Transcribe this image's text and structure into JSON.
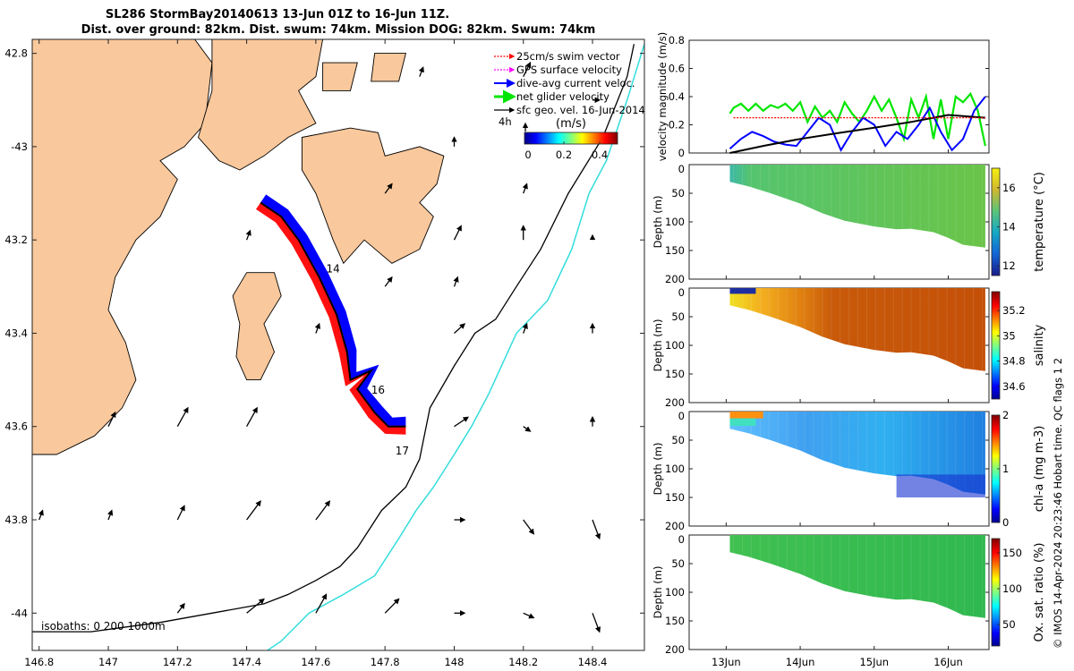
{
  "title": {
    "line1": "SL286 StormBay20140613 13-Jun 01Z to 16-Jun 11Z.",
    "line2": "Dist. over ground: 82km. Dist. swum: 74km. Mission DOG: 82km. Swum: 74km"
  },
  "credit": "© IMOS 14-Apr-2024 20:23:46 Hobart time. QC flags 1  2",
  "colors": {
    "land": "#f9c89c",
    "swim_vector": "#ff0000",
    "gps_velocity": "#ff00ff",
    "dive_avg": "#0000ff",
    "net_glider": "#00e600",
    "sfc_geo": "#000000",
    "isobath_1000": "#33dddd"
  },
  "map": {
    "legend": [
      {
        "label": "25cm/s swim vector",
        "icon": "red-dotted-arrow-icon"
      },
      {
        "label": "GPS surface velocity",
        "icon": "magenta-arrow-icon"
      },
      {
        "label": "dive-avg current veloc.",
        "icon": "blue-arrow-icon"
      },
      {
        "label": "net glider velocity",
        "icon": "green-arrow-icon"
      },
      {
        "label": "sfc geo. vel. 16-Jun-2014",
        "icon": "black-arrow-icon"
      }
    ],
    "legend_4h": "4h",
    "colorbar_label": "(m/s)",
    "colorbar_ticks": [
      {
        "v": 0,
        "t": "0"
      },
      {
        "v": 0.2,
        "t": "0.2"
      },
      {
        "v": 0.4,
        "t": "0.4"
      }
    ],
    "colorbar_range": [
      -0.02,
      0.5
    ],
    "isobath_label": "isobaths: 0   200  1000m",
    "xlim": [
      146.78,
      148.55
    ],
    "ylim": [
      -44.08,
      -42.77
    ],
    "xticks": [
      {
        "v": 146.8,
        "t": "146.8"
      },
      {
        "v": 147,
        "t": "147"
      },
      {
        "v": 147.2,
        "t": "147.2"
      },
      {
        "v": 147.4,
        "t": "147.4"
      },
      {
        "v": 147.6,
        "t": "147.6"
      },
      {
        "v": 147.8,
        "t": "147.8"
      },
      {
        "v": 148,
        "t": "148"
      },
      {
        "v": 148.2,
        "t": "148.2"
      },
      {
        "v": 148.4,
        "t": "148.4"
      }
    ],
    "yticks": [
      {
        "v": -42.8,
        "t": "42.8"
      },
      {
        "v": -43,
        "t": "-43"
      },
      {
        "v": -43.2,
        "t": "43.2"
      },
      {
        "v": -43.4,
        "t": "43.4"
      },
      {
        "v": -43.6,
        "t": "43.6"
      },
      {
        "v": -43.8,
        "t": "43.8"
      },
      {
        "v": -44,
        "t": "-44"
      }
    ],
    "day_labels": [
      {
        "text": "14",
        "lon": 147.63,
        "lat": -43.27
      },
      {
        "text": "16",
        "lon": 147.76,
        "lat": -43.53
      },
      {
        "text": "17",
        "lon": 147.83,
        "lat": -43.66
      }
    ],
    "track": [
      [
        147.44,
        -43.12
      ],
      [
        147.5,
        -43.15
      ],
      [
        147.55,
        -43.2
      ],
      [
        147.61,
        -43.28
      ],
      [
        147.66,
        -43.36
      ],
      [
        147.69,
        -43.44
      ],
      [
        147.7,
        -43.5
      ],
      [
        147.76,
        -43.48
      ],
      [
        147.72,
        -43.52
      ],
      [
        147.77,
        -43.57
      ],
      [
        147.81,
        -43.6
      ],
      [
        147.86,
        -43.6
      ]
    ],
    "isobath_200": [
      [
        148.52,
        -42.78
      ],
      [
        148.5,
        -42.85
      ],
      [
        148.43,
        -42.98
      ],
      [
        148.33,
        -43.1
      ],
      [
        148.25,
        -43.22
      ],
      [
        148.18,
        -43.3
      ],
      [
        148.12,
        -43.37
      ],
      [
        148.06,
        -43.4
      ],
      [
        148.0,
        -43.47
      ],
      [
        147.93,
        -43.56
      ],
      [
        147.9,
        -43.67
      ],
      [
        147.86,
        -43.73
      ],
      [
        147.79,
        -43.78
      ],
      [
        147.72,
        -43.86
      ],
      [
        147.67,
        -43.9
      ],
      [
        147.6,
        -43.93
      ],
      [
        147.52,
        -43.96
      ],
      [
        147.45,
        -43.98
      ],
      [
        147.3,
        -44.0
      ],
      [
        147.15,
        -44.02
      ],
      [
        146.95,
        -44.04
      ],
      [
        146.78,
        -44.04
      ]
    ],
    "isobath_1000": [
      [
        148.55,
        -42.78
      ],
      [
        148.5,
        -42.9
      ],
      [
        148.44,
        -43.03
      ],
      [
        148.39,
        -43.1
      ],
      [
        148.34,
        -43.22
      ],
      [
        148.27,
        -43.33
      ],
      [
        148.18,
        -43.4
      ],
      [
        148.1,
        -43.53
      ],
      [
        148.05,
        -43.6
      ],
      [
        148.0,
        -43.66
      ],
      [
        147.94,
        -43.73
      ],
      [
        147.89,
        -43.78
      ],
      [
        147.84,
        -43.84
      ],
      [
        147.77,
        -43.92
      ],
      [
        147.68,
        -43.96
      ],
      [
        147.58,
        -44.0
      ],
      [
        147.5,
        -44.06
      ],
      [
        147.46,
        -44.08
      ]
    ],
    "land": [
      [
        [
          146.78,
          -42.77
        ],
        [
          147.25,
          -42.77
        ],
        [
          147.3,
          -42.82
        ],
        [
          147.28,
          -42.95
        ],
        [
          147.22,
          -43.0
        ],
        [
          147.15,
          -43.03
        ],
        [
          147.2,
          -43.07
        ],
        [
          147.15,
          -43.15
        ],
        [
          147.08,
          -43.2
        ],
        [
          147.02,
          -43.28
        ],
        [
          147.0,
          -43.35
        ],
        [
          147.05,
          -43.42
        ],
        [
          147.08,
          -43.5
        ],
        [
          147.04,
          -43.56
        ],
        [
          146.96,
          -43.62
        ],
        [
          146.85,
          -43.66
        ],
        [
          146.78,
          -43.66
        ]
      ],
      [
        [
          147.3,
          -42.77
        ],
        [
          147.62,
          -42.77
        ],
        [
          147.6,
          -42.85
        ],
        [
          147.55,
          -42.88
        ],
        [
          147.6,
          -42.95
        ],
        [
          147.52,
          -42.98
        ],
        [
          147.45,
          -43.02
        ],
        [
          147.38,
          -43.05
        ],
        [
          147.32,
          -43.03
        ],
        [
          147.26,
          -42.98
        ],
        [
          147.3,
          -42.88
        ]
      ],
      [
        [
          147.62,
          -42.82
        ],
        [
          147.72,
          -42.82
        ],
        [
          147.7,
          -42.88
        ],
        [
          147.62,
          -42.88
        ]
      ],
      [
        [
          147.77,
          -42.8
        ],
        [
          147.86,
          -42.8
        ],
        [
          147.84,
          -42.86
        ],
        [
          147.76,
          -42.86
        ]
      ],
      [
        [
          147.56,
          -42.98
        ],
        [
          147.7,
          -42.96
        ],
        [
          147.78,
          -42.97
        ],
        [
          147.8,
          -43.02
        ],
        [
          147.9,
          -43.0
        ],
        [
          147.97,
          -43.02
        ],
        [
          147.95,
          -43.08
        ],
        [
          147.9,
          -43.12
        ],
        [
          147.94,
          -43.15
        ],
        [
          147.9,
          -43.22
        ],
        [
          147.82,
          -43.25
        ],
        [
          147.74,
          -43.2
        ],
        [
          147.68,
          -43.25
        ],
        [
          147.65,
          -43.2
        ],
        [
          147.6,
          -43.1
        ],
        [
          147.56,
          -43.05
        ]
      ],
      [
        [
          147.4,
          -43.27
        ],
        [
          147.48,
          -43.27
        ],
        [
          147.5,
          -43.32
        ],
        [
          147.45,
          -43.38
        ],
        [
          147.48,
          -43.44
        ],
        [
          147.44,
          -43.5
        ],
        [
          147.4,
          -43.5
        ],
        [
          147.37,
          -43.45
        ],
        [
          147.38,
          -43.38
        ],
        [
          147.36,
          -43.32
        ]
      ]
    ],
    "geo_vectors": [
      [
        147.0,
        -43.6,
        0.02,
        0.03
      ],
      [
        147.2,
        -43.6,
        0.03,
        0.04
      ],
      [
        147.4,
        -43.6,
        0.03,
        0.04
      ],
      [
        148.0,
        -43.6,
        0.04,
        0.02
      ],
      [
        148.2,
        -43.6,
        0.02,
        -0.01
      ],
      [
        148.4,
        -43.6,
        0.0,
        0.02
      ],
      [
        146.8,
        -43.8,
        0.01,
        0.02
      ],
      [
        147.0,
        -43.8,
        0.01,
        0.02
      ],
      [
        147.2,
        -43.8,
        0.02,
        0.03
      ],
      [
        147.4,
        -43.8,
        0.04,
        0.04
      ],
      [
        147.6,
        -43.8,
        0.04,
        0.04
      ],
      [
        148.0,
        -43.8,
        0.03,
        0.0
      ],
      [
        148.2,
        -43.8,
        0.03,
        -0.03
      ],
      [
        148.4,
        -43.8,
        0.02,
        -0.04
      ],
      [
        147.2,
        -44.0,
        0.02,
        0.02
      ],
      [
        147.4,
        -44.0,
        0.05,
        0.03
      ],
      [
        147.6,
        -44.0,
        0.03,
        0.04
      ],
      [
        147.8,
        -44.0,
        0.04,
        0.03
      ],
      [
        148.0,
        -44.0,
        0.03,
        0.0
      ],
      [
        148.2,
        -44.0,
        0.03,
        -0.01
      ],
      [
        148.4,
        -44.0,
        0.02,
        -0.04
      ],
      [
        147.4,
        -43.2,
        0.01,
        0.02
      ],
      [
        147.6,
        -43.4,
        0.01,
        0.02
      ],
      [
        148.0,
        -43.4,
        0.03,
        0.02
      ],
      [
        148.2,
        -43.4,
        0.01,
        0.02
      ],
      [
        148.4,
        -43.4,
        0.0,
        0.02
      ],
      [
        148.0,
        -43.2,
        0.02,
        0.03
      ],
      [
        148.2,
        -43.2,
        0.0,
        0.03
      ],
      [
        148.4,
        -43.2,
        0.0,
        0.01
      ],
      [
        147.8,
        -43.3,
        0.02,
        0.02
      ],
      [
        148.0,
        -43.3,
        0.01,
        0.02
      ],
      [
        148.0,
        -43.0,
        0.0,
        0.02
      ],
      [
        148.2,
        -42.85,
        0.02,
        0.03
      ],
      [
        148.4,
        -42.9,
        0.02,
        0.0
      ],
      [
        147.8,
        -43.1,
        0.02,
        0.02
      ],
      [
        148.2,
        -43.1,
        0.01,
        0.02
      ],
      [
        147.9,
        -42.85,
        0.01,
        0.02
      ]
    ]
  },
  "chart_data": [
    {
      "type": "line",
      "ylabel": "velocity magnitude (m/s)",
      "xlim": [
        12.5,
        16.55
      ],
      "ylim": [
        0,
        0.8
      ],
      "yticks": [
        0,
        0.2,
        0.4,
        0.6,
        0.8
      ],
      "series": [
        {
          "name": "net glider velocity",
          "color": "#00e600",
          "x": [
            13.05,
            13.1,
            13.2,
            13.3,
            13.4,
            13.5,
            13.6,
            13.7,
            13.8,
            13.9,
            14.0,
            14.1,
            14.2,
            14.3,
            14.4,
            14.5,
            14.6,
            14.7,
            14.8,
            14.9,
            15.0,
            15.1,
            15.2,
            15.3,
            15.4,
            15.5,
            15.6,
            15.7,
            15.8,
            15.9,
            16.0,
            16.1,
            16.2,
            16.3,
            16.4,
            16.5
          ],
          "y": [
            0.28,
            0.32,
            0.35,
            0.3,
            0.35,
            0.3,
            0.34,
            0.32,
            0.35,
            0.3,
            0.36,
            0.22,
            0.33,
            0.25,
            0.3,
            0.22,
            0.36,
            0.28,
            0.22,
            0.3,
            0.4,
            0.3,
            0.38,
            0.25,
            0.1,
            0.38,
            0.25,
            0.4,
            0.1,
            0.38,
            0.1,
            0.4,
            0.36,
            0.42,
            0.3,
            0.05
          ]
        },
        {
          "name": "dive-avg current veloc.",
          "color": "#0000ff",
          "x": [
            13.05,
            13.2,
            13.35,
            13.5,
            13.65,
            13.8,
            13.95,
            14.1,
            14.25,
            14.4,
            14.55,
            14.7,
            14.85,
            15.0,
            15.15,
            15.3,
            15.45,
            15.6,
            15.75,
            15.9,
            16.05,
            16.2,
            16.35,
            16.5
          ],
          "y": [
            0.03,
            0.1,
            0.15,
            0.12,
            0.08,
            0.06,
            0.05,
            0.15,
            0.25,
            0.2,
            0.02,
            0.15,
            0.25,
            0.2,
            0.05,
            0.15,
            0.1,
            0.2,
            0.32,
            0.15,
            0.02,
            0.1,
            0.3,
            0.4
          ]
        },
        {
          "name": "sfc geo. vel.",
          "color": "#000000",
          "x": [
            13.05,
            13.5,
            14.0,
            14.5,
            15.0,
            15.5,
            16.0,
            16.5
          ],
          "y": [
            0.0,
            0.05,
            0.1,
            0.14,
            0.18,
            0.22,
            0.27,
            0.25
          ]
        },
        {
          "name": "25cm/s swim vector",
          "color": "#ff0000",
          "x": [
            13.1,
            16.5
          ],
          "y": [
            0.25,
            0.25
          ]
        }
      ]
    },
    {
      "type": "heatmap",
      "ylabel": "Depth (m)",
      "colorbar_label": "temperature (°C)",
      "ylim": [
        0,
        200
      ],
      "yticks": [
        0,
        50,
        100,
        150,
        200
      ],
      "clim": [
        11.5,
        17
      ],
      "cticks": [
        12,
        14,
        16
      ],
      "colormap": "parula"
    },
    {
      "type": "heatmap",
      "ylabel": "Depth (m)",
      "colorbar_label": "salinity",
      "ylim": [
        0,
        200
      ],
      "yticks": [
        0,
        50,
        100,
        150,
        200
      ],
      "clim": [
        34.5,
        35.35
      ],
      "cticks": [
        34.6,
        34.8,
        35,
        35.2
      ],
      "colormap": "jet"
    },
    {
      "type": "heatmap",
      "ylabel": "Depth (m)",
      "colorbar_label": "chl-a (mg m-3)",
      "ylim": [
        0,
        200
      ],
      "yticks": [
        0,
        50,
        100,
        150,
        200
      ],
      "clim": [
        0,
        2
      ],
      "cticks": [
        0,
        1,
        2
      ],
      "colormap": "jet"
    },
    {
      "type": "heatmap",
      "ylabel": "Depth (m)",
      "colorbar_label": "Ox. sat. ratio (%)",
      "ylim": [
        0,
        200
      ],
      "yticks": [
        0,
        50,
        100,
        150,
        200
      ],
      "clim": [
        20,
        170
      ],
      "cticks": [
        50,
        100,
        150
      ],
      "colormap": "jet",
      "xticks": [
        {
          "v": 13,
          "t": "13Jun"
        },
        {
          "v": 14,
          "t": "14Jun"
        },
        {
          "v": 15,
          "t": "15Jun"
        },
        {
          "v": 16,
          "t": "16Jun"
        }
      ]
    }
  ]
}
